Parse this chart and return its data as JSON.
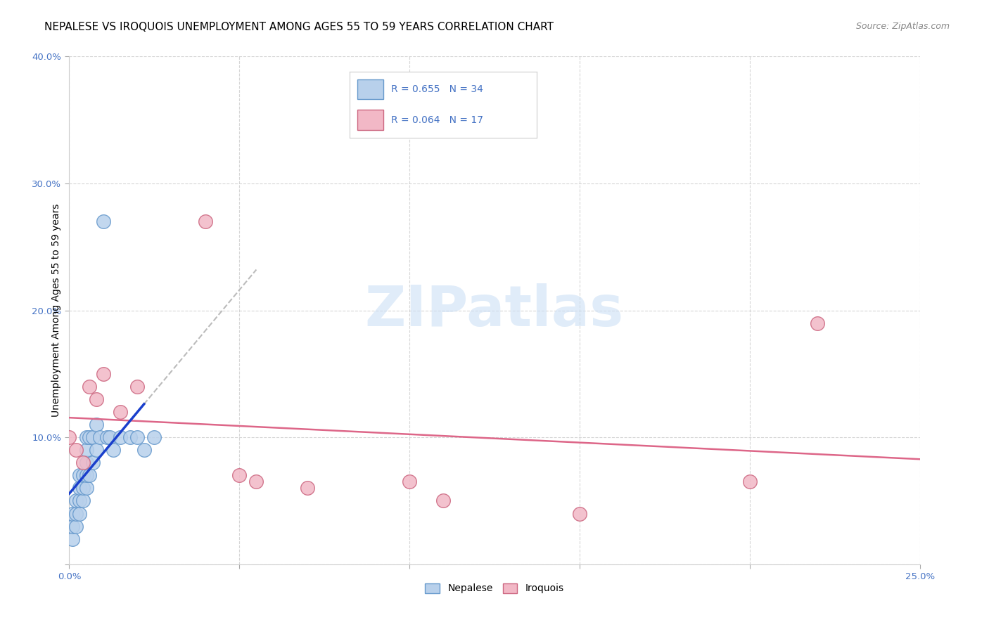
{
  "title": "NEPALESE VS IROQUOIS UNEMPLOYMENT AMONG AGES 55 TO 59 YEARS CORRELATION CHART",
  "source": "Source: ZipAtlas.com",
  "ylabel": "Unemployment Among Ages 55 to 59 years",
  "tick_color": "#4472c4",
  "xlim": [
    0.0,
    0.25
  ],
  "ylim": [
    0.0,
    0.4
  ],
  "xticks": [
    0.0,
    0.05,
    0.1,
    0.15,
    0.2,
    0.25
  ],
  "yticks": [
    0.0,
    0.1,
    0.2,
    0.3,
    0.4
  ],
  "xtick_labels": [
    "0.0%",
    "",
    "",
    "",
    "",
    "25.0%"
  ],
  "ytick_labels": [
    "",
    "10.0%",
    "20.0%",
    "30.0%",
    "40.0%"
  ],
  "watermark_zip": "ZIP",
  "watermark_atlas": "atlas",
  "nepalese_color": "#b8d0eb",
  "iroquois_color": "#f2b8c6",
  "nepalese_edge": "#6699cc",
  "iroquois_edge": "#cc6680",
  "trend_nepalese_color": "#1a3fcc",
  "trend_iroquois_color": "#dd6688",
  "dashed_color": "#bbbbbb",
  "legend_R_nepalese": "R = 0.655",
  "legend_N_nepalese": "N = 34",
  "legend_R_iroquois": "R = 0.064",
  "legend_N_iroquois": "N = 17",
  "nepalese_x": [
    0.001,
    0.001,
    0.001,
    0.002,
    0.002,
    0.002,
    0.003,
    0.003,
    0.003,
    0.003,
    0.004,
    0.004,
    0.004,
    0.005,
    0.005,
    0.005,
    0.005,
    0.005,
    0.006,
    0.006,
    0.007,
    0.007,
    0.008,
    0.008,
    0.009,
    0.01,
    0.011,
    0.012,
    0.013,
    0.015,
    0.018,
    0.02,
    0.022,
    0.025
  ],
  "nepalese_y": [
    0.02,
    0.03,
    0.04,
    0.03,
    0.04,
    0.05,
    0.04,
    0.05,
    0.06,
    0.07,
    0.05,
    0.06,
    0.07,
    0.06,
    0.07,
    0.08,
    0.09,
    0.1,
    0.07,
    0.1,
    0.08,
    0.1,
    0.09,
    0.11,
    0.1,
    0.27,
    0.1,
    0.1,
    0.09,
    0.1,
    0.1,
    0.1,
    0.09,
    0.1
  ],
  "iroquois_x": [
    0.0,
    0.002,
    0.004,
    0.006,
    0.008,
    0.01,
    0.015,
    0.02,
    0.04,
    0.05,
    0.055,
    0.07,
    0.1,
    0.11,
    0.15,
    0.2,
    0.22
  ],
  "iroquois_y": [
    0.1,
    0.09,
    0.08,
    0.14,
    0.13,
    0.15,
    0.12,
    0.14,
    0.27,
    0.07,
    0.065,
    0.06,
    0.065,
    0.05,
    0.04,
    0.065,
    0.19
  ],
  "grid_color": "#cccccc",
  "background_color": "#ffffff",
  "title_fontsize": 11,
  "axis_label_fontsize": 10,
  "tick_fontsize": 9.5,
  "legend_fontsize": 10
}
